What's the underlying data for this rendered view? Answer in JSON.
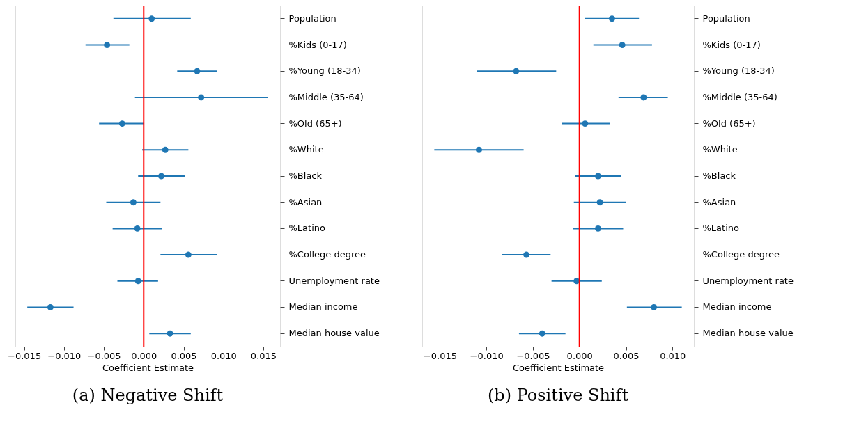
{
  "chart_data": [
    {
      "type": "scatter",
      "orientation": "horizontal",
      "title": "(a) Negative Shift",
      "xlabel": "Coefficient Estimate",
      "marker": "circle",
      "grid": false,
      "categories": [
        "Population",
        "%Kids (0-17)",
        "%Young (18-34)",
        "%Middle (35-64)",
        "%Old (65+)",
        "%White",
        "%Black",
        "%Asian",
        "%Latino",
        "%College degree",
        "Unemployment rate",
        "Median income",
        "Median house value"
      ],
      "series": [
        {
          "color": "#1f77b4",
          "values": [
            0.001,
            -0.0046,
            0.0067,
            0.0072,
            -0.0027,
            0.0027,
            0.0022,
            -0.0013,
            -0.0008,
            0.0056,
            -0.0007,
            -0.0117,
            0.0033
          ],
          "errors": [
            [
              -0.0038,
              0.0059
            ],
            [
              -0.0073,
              -0.0018
            ],
            [
              0.0042,
              0.0092
            ],
            [
              -0.0011,
              0.0156
            ],
            [
              -0.0056,
              0.0
            ],
            [
              -0.0002,
              0.0056
            ],
            [
              -0.0007,
              0.0052
            ],
            [
              -0.0047,
              0.0021
            ],
            [
              -0.0039,
              0.0023
            ],
            [
              0.0021,
              0.0092
            ],
            [
              -0.0033,
              0.0018
            ],
            [
              -0.0146,
              -0.0088
            ],
            [
              0.0007,
              0.0059
            ]
          ]
        }
      ],
      "xlim": [
        -0.0161,
        0.0171
      ],
      "xticks": [
        {
          "value": -0.015,
          "label": "−0.015"
        },
        {
          "value": -0.01,
          "label": "−0.010"
        },
        {
          "value": -0.005,
          "label": "−0.005"
        },
        {
          "value": 0,
          "label": "0.000"
        },
        {
          "value": 0.005,
          "label": "0.005"
        },
        {
          "value": 0.01,
          "label": "0.010"
        },
        {
          "value": 0.015,
          "label": "0.015"
        }
      ],
      "ref_lines": [
        {
          "axis": "x",
          "value": 0,
          "color": "#ff0000"
        }
      ]
    },
    {
      "type": "scatter",
      "orientation": "horizontal",
      "title": "(b) Positive Shift",
      "xlabel": "Coefficient Estimate",
      "marker": "circle",
      "grid": false,
      "categories": [
        "Population",
        "%Kids (0-17)",
        "%Young (18-34)",
        "%Middle (35-64)",
        "%Old (65+)",
        "%White",
        "%Black",
        "%Asian",
        "%Latino",
        "%College degree",
        "Unemployment rate",
        "Median income",
        "Median house value"
      ],
      "series": [
        {
          "color": "#1f77b4",
          "values": [
            0.0035,
            0.0046,
            -0.0068,
            0.0069,
            0.0006,
            -0.0108,
            0.002,
            0.0022,
            0.002,
            -0.0057,
            -0.0003,
            0.008,
            -0.004
          ],
          "errors": [
            [
              0.0006,
              0.0064
            ],
            [
              0.0015,
              0.0078
            ],
            [
              -0.011,
              -0.0025
            ],
            [
              0.0042,
              0.0095
            ],
            [
              -0.0019,
              0.0033
            ],
            [
              -0.0156,
              -0.006
            ],
            [
              -0.0005,
              0.0045
            ],
            [
              -0.0006,
              0.005
            ],
            [
              -0.0007,
              0.0047
            ],
            [
              -0.0083,
              -0.0031
            ],
            [
              -0.003,
              0.0024
            ],
            [
              0.0051,
              0.011
            ],
            [
              -0.0065,
              -0.0015
            ]
          ]
        }
      ],
      "xlim": [
        -0.0169,
        0.0123
      ],
      "xticks": [
        {
          "value": -0.015,
          "label": "−0.015"
        },
        {
          "value": -0.01,
          "label": "−0.010"
        },
        {
          "value": -0.005,
          "label": "−0.005"
        },
        {
          "value": 0,
          "label": "0.000"
        },
        {
          "value": 0.005,
          "label": "0.005"
        },
        {
          "value": 0.01,
          "label": "0.010"
        }
      ],
      "ref_lines": [
        {
          "axis": "x",
          "value": 0,
          "color": "#ff0000"
        }
      ]
    }
  ]
}
